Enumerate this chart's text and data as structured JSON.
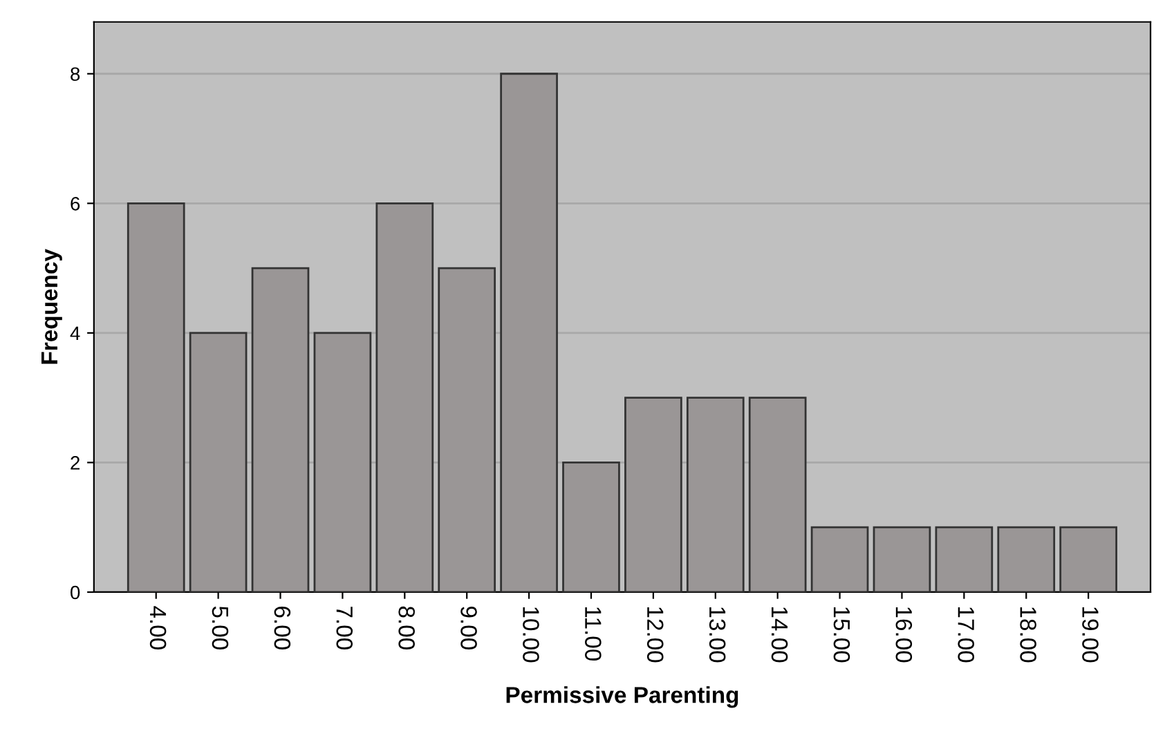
{
  "chart_data": {
    "type": "bar",
    "xlabel": "Permissive Parenting",
    "ylabel": "Frequency",
    "categories": [
      "4.00",
      "5.00",
      "6.00",
      "7.00",
      "8.00",
      "9.00",
      "10.00",
      "11.00",
      "12.00",
      "13.00",
      "14.00",
      "15.00",
      "16.00",
      "17.00",
      "18.00",
      "19.00"
    ],
    "values": [
      6,
      4,
      5,
      4,
      6,
      5,
      8,
      2,
      3,
      3,
      3,
      1,
      1,
      1,
      1,
      1
    ],
    "color": "#9a9696",
    "ylim": [
      0,
      8.8
    ],
    "yticks": [
      0,
      2,
      4,
      6,
      8
    ],
    "grid": "y"
  }
}
